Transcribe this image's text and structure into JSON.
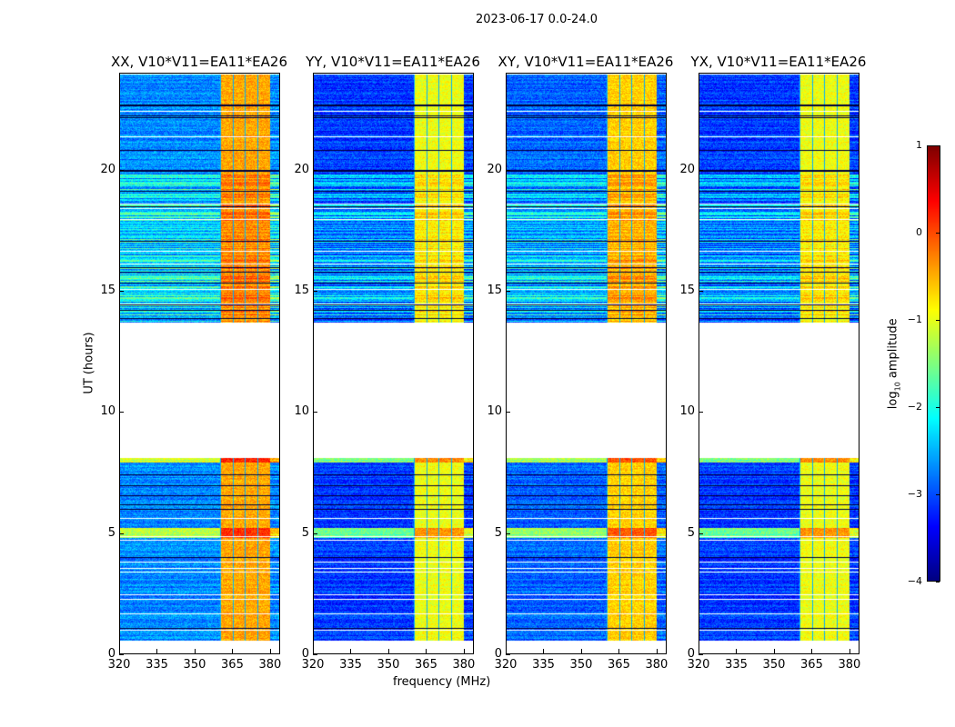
{
  "title": "2023-06-17 0.0-24.0",
  "chart_data": {
    "type": "heatmap",
    "panels": [
      {
        "title": "XX, V10*V11=EA11*EA26",
        "low_level": -2.7,
        "band_level": -0.4
      },
      {
        "title": "YY, V10*V11=EA11*EA26",
        "low_level": -3.1,
        "band_level": -0.9
      },
      {
        "title": "XY, V10*V11=EA11*EA26",
        "low_level": -2.9,
        "band_level": -0.6
      },
      {
        "title": "YX, V10*V11=EA11*EA26",
        "low_level": -3.1,
        "band_level": -0.9
      }
    ],
    "xlabel": "frequency (MHz)",
    "ylabel": "UT (hours)",
    "xlim": [
      320,
      384
    ],
    "ylim": [
      0,
      24
    ],
    "xticks": [
      "320",
      "335",
      "350",
      "365",
      "380"
    ],
    "yticks": [
      "0",
      "5",
      "10",
      "15",
      "20"
    ],
    "flagged_time_gap_hours": [
      8.1,
      13.7
    ],
    "bright_band_mhz": [
      360,
      380
    ],
    "colorbar": {
      "label_prefix": "log",
      "label_sub": "10",
      "label_suffix": " amplitude",
      "range": [
        -4,
        1
      ],
      "ticks": [
        "1",
        "0",
        "−1",
        "−2",
        "−3",
        "−4"
      ],
      "colormap": "jet"
    }
  }
}
